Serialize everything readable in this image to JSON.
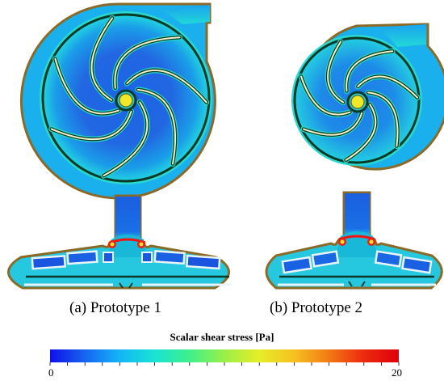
{
  "captions": {
    "prototype1": "(a) Prototype 1",
    "prototype2": "(b) Prototype 2"
  },
  "colorbar": {
    "title": "Scalar shear stress [Pa]",
    "min": "0",
    "max": "20",
    "colors": [
      "#1010e8",
      "#1565f0",
      "#13b6f6",
      "#19e3d2",
      "#3ef08a",
      "#9af046",
      "#e4ee28",
      "#f6c020",
      "#f27a14",
      "#ec2a0e",
      "#e0000a"
    ]
  },
  "field_colors": {
    "casing": "#8a6a26",
    "wall_low": "#0e8fe0",
    "wall_high": "#f21410",
    "interior_low": "#1e5fe0",
    "interior_mid": "#1aa8ec",
    "interior_high": "#23e2c8"
  }
}
